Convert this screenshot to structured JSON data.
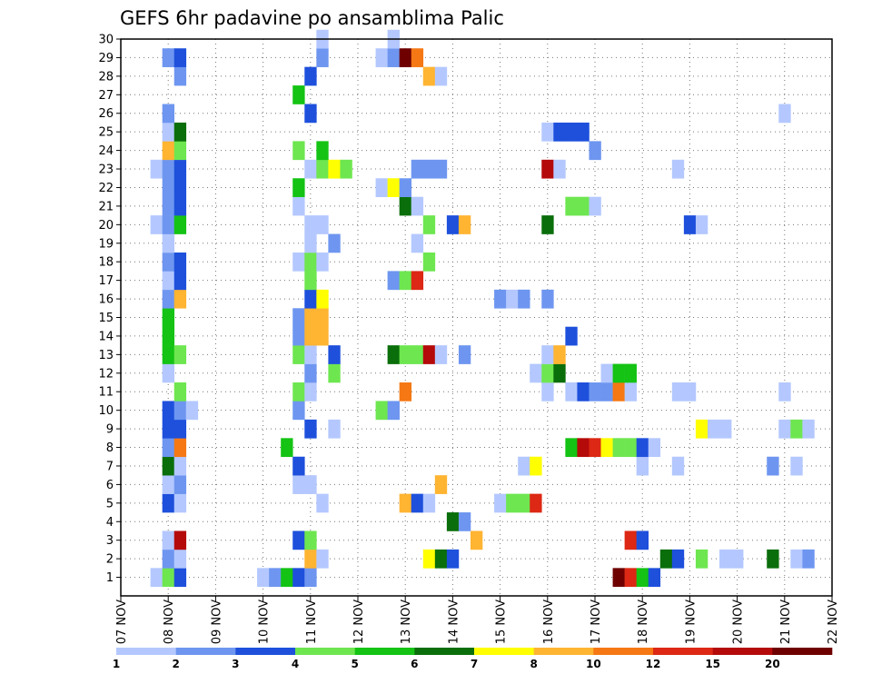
{
  "chart_data": {
    "type": "heatmap",
    "title": "GEFS 6hr padavine po ansamblima Palic",
    "xlabel": "",
    "ylabel": "",
    "x_ticks": [
      "07 NOV",
      "08 NOV",
      "09 NOV",
      "10 NOV",
      "11 NOV",
      "12 NOV",
      "13 NOV",
      "14 NOV",
      "15 NOV",
      "16 NOV",
      "17 NOV",
      "18 NOV",
      "19 NOV",
      "20 NOV",
      "21 NOV",
      "22 NOV"
    ],
    "x_range_days": [
      7,
      22
    ],
    "y_ticks": [
      "1",
      "2",
      "3",
      "4",
      "5",
      "6",
      "7",
      "8",
      "9",
      "10",
      "11",
      "12",
      "13",
      "14",
      "15",
      "16",
      "17",
      "18",
      "19",
      "20",
      "21",
      "22",
      "23",
      "24",
      "25",
      "26",
      "27",
      "28",
      "29",
      "30"
    ],
    "y_range": [
      0,
      30
    ],
    "grid": true,
    "legend": {
      "placement": "bottom",
      "labels": [
        "1",
        "2",
        "3",
        "4",
        "5",
        "6",
        "7",
        "8",
        "10",
        "12",
        "15",
        "20"
      ],
      "colors": [
        "#b4c8ff",
        "#6e96f0",
        "#1e50dc",
        "#6ee650",
        "#14c314",
        "#0a6e0a",
        "#ffff00",
        "#ffb432",
        "#f57814",
        "#dc2814",
        "#b40a0a",
        "#6e0000"
      ]
    },
    "cells": [
      {
        "x": 7.75,
        "y": 1,
        "c": 0
      },
      {
        "x": 8.0,
        "y": 1,
        "c": 3
      },
      {
        "x": 8.25,
        "y": 1,
        "c": 2
      },
      {
        "x": 10.0,
        "y": 1,
        "c": 0
      },
      {
        "x": 10.25,
        "y": 1,
        "c": 1
      },
      {
        "x": 10.5,
        "y": 1,
        "c": 4
      },
      {
        "x": 10.75,
        "y": 1,
        "c": 2
      },
      {
        "x": 11.0,
        "y": 1,
        "c": 1
      },
      {
        "x": 17.5,
        "y": 1,
        "c": 11
      },
      {
        "x": 17.75,
        "y": 1,
        "c": 9
      },
      {
        "x": 18.0,
        "y": 1,
        "c": 4
      },
      {
        "x": 18.25,
        "y": 1,
        "c": 2
      },
      {
        "x": 8.0,
        "y": 2,
        "c": 1
      },
      {
        "x": 8.25,
        "y": 2,
        "c": 0
      },
      {
        "x": 11.0,
        "y": 2,
        "c": 7
      },
      {
        "x": 11.25,
        "y": 2,
        "c": 0
      },
      {
        "x": 13.5,
        "y": 2,
        "c": 6
      },
      {
        "x": 13.75,
        "y": 2,
        "c": 5
      },
      {
        "x": 14.0,
        "y": 2,
        "c": 2
      },
      {
        "x": 18.5,
        "y": 2,
        "c": 5
      },
      {
        "x": 18.75,
        "y": 2,
        "c": 2
      },
      {
        "x": 19.25,
        "y": 2,
        "c": 3
      },
      {
        "x": 19.75,
        "y": 2,
        "c": 0
      },
      {
        "x": 20.0,
        "y": 2,
        "c": 0
      },
      {
        "x": 20.75,
        "y": 2,
        "c": 5
      },
      {
        "x": 21.25,
        "y": 2,
        "c": 0
      },
      {
        "x": 21.5,
        "y": 2,
        "c": 1
      },
      {
        "x": 8.0,
        "y": 3,
        "c": 0
      },
      {
        "x": 8.25,
        "y": 3,
        "c": 10
      },
      {
        "x": 10.75,
        "y": 3,
        "c": 2
      },
      {
        "x": 11.0,
        "y": 3,
        "c": 3
      },
      {
        "x": 14.5,
        "y": 3,
        "c": 7
      },
      {
        "x": 17.75,
        "y": 3,
        "c": 9
      },
      {
        "x": 18.0,
        "y": 3,
        "c": 2
      },
      {
        "x": 14.0,
        "y": 4,
        "c": 5
      },
      {
        "x": 14.25,
        "y": 4,
        "c": 1
      },
      {
        "x": 8.0,
        "y": 5,
        "c": 2
      },
      {
        "x": 8.25,
        "y": 5,
        "c": 0
      },
      {
        "x": 11.25,
        "y": 5,
        "c": 0
      },
      {
        "x": 13.0,
        "y": 5,
        "c": 7
      },
      {
        "x": 13.25,
        "y": 5,
        "c": 2
      },
      {
        "x": 13.5,
        "y": 5,
        "c": 0
      },
      {
        "x": 15.0,
        "y": 5,
        "c": 0
      },
      {
        "x": 15.25,
        "y": 5,
        "c": 3
      },
      {
        "x": 15.5,
        "y": 5,
        "c": 3
      },
      {
        "x": 15.75,
        "y": 5,
        "c": 9
      },
      {
        "x": 8.0,
        "y": 6,
        "c": 0
      },
      {
        "x": 8.25,
        "y": 6,
        "c": 1
      },
      {
        "x": 10.75,
        "y": 6,
        "c": 0
      },
      {
        "x": 11.0,
        "y": 6,
        "c": 0
      },
      {
        "x": 13.75,
        "y": 6,
        "c": 7
      },
      {
        "x": 8.0,
        "y": 7,
        "c": 5
      },
      {
        "x": 8.25,
        "y": 7,
        "c": 0
      },
      {
        "x": 10.75,
        "y": 7,
        "c": 2
      },
      {
        "x": 15.5,
        "y": 7,
        "c": 0
      },
      {
        "x": 15.75,
        "y": 7,
        "c": 6
      },
      {
        "x": 18.0,
        "y": 7,
        "c": 0
      },
      {
        "x": 18.75,
        "y": 7,
        "c": 0
      },
      {
        "x": 20.75,
        "y": 7,
        "c": 1
      },
      {
        "x": 21.25,
        "y": 7,
        "c": 0
      },
      {
        "x": 8.0,
        "y": 8,
        "c": 1
      },
      {
        "x": 8.25,
        "y": 8,
        "c": 8
      },
      {
        "x": 10.5,
        "y": 8,
        "c": 4
      },
      {
        "x": 16.5,
        "y": 8,
        "c": 4
      },
      {
        "x": 16.75,
        "y": 8,
        "c": 10
      },
      {
        "x": 17.0,
        "y": 8,
        "c": 9
      },
      {
        "x": 17.25,
        "y": 8,
        "c": 6
      },
      {
        "x": 17.5,
        "y": 8,
        "c": 3
      },
      {
        "x": 17.75,
        "y": 8,
        "c": 3
      },
      {
        "x": 18.0,
        "y": 8,
        "c": 2
      },
      {
        "x": 18.25,
        "y": 8,
        "c": 0
      },
      {
        "x": 8.0,
        "y": 9,
        "c": 2
      },
      {
        "x": 8.25,
        "y": 9,
        "c": 2
      },
      {
        "x": 11.0,
        "y": 9,
        "c": 2
      },
      {
        "x": 11.5,
        "y": 9,
        "c": 0
      },
      {
        "x": 19.25,
        "y": 9,
        "c": 6
      },
      {
        "x": 19.5,
        "y": 9,
        "c": 0
      },
      {
        "x": 19.75,
        "y": 9,
        "c": 0
      },
      {
        "x": 21.0,
        "y": 9,
        "c": 0
      },
      {
        "x": 21.25,
        "y": 9,
        "c": 3
      },
      {
        "x": 21.5,
        "y": 9,
        "c": 0
      },
      {
        "x": 8.0,
        "y": 10,
        "c": 2
      },
      {
        "x": 8.25,
        "y": 10,
        "c": 1
      },
      {
        "x": 8.5,
        "y": 10,
        "c": 0
      },
      {
        "x": 10.75,
        "y": 10,
        "c": 1
      },
      {
        "x": 12.5,
        "y": 10,
        "c": 3
      },
      {
        "x": 12.75,
        "y": 10,
        "c": 1
      },
      {
        "x": 8.25,
        "y": 11,
        "c": 3
      },
      {
        "x": 10.75,
        "y": 11,
        "c": 3
      },
      {
        "x": 11.0,
        "y": 11,
        "c": 0
      },
      {
        "x": 13.0,
        "y": 11,
        "c": 8
      },
      {
        "x": 16.0,
        "y": 11,
        "c": 0
      },
      {
        "x": 16.5,
        "y": 11,
        "c": 0
      },
      {
        "x": 16.75,
        "y": 11,
        "c": 2
      },
      {
        "x": 17.0,
        "y": 11,
        "c": 1
      },
      {
        "x": 17.25,
        "y": 11,
        "c": 1
      },
      {
        "x": 17.5,
        "y": 11,
        "c": 8
      },
      {
        "x": 17.75,
        "y": 11,
        "c": 0
      },
      {
        "x": 18.75,
        "y": 11,
        "c": 0
      },
      {
        "x": 19.0,
        "y": 11,
        "c": 0
      },
      {
        "x": 21.0,
        "y": 11,
        "c": 0
      },
      {
        "x": 8.0,
        "y": 12,
        "c": 0
      },
      {
        "x": 11.0,
        "y": 12,
        "c": 1
      },
      {
        "x": 11.5,
        "y": 12,
        "c": 3
      },
      {
        "x": 15.75,
        "y": 12,
        "c": 0
      },
      {
        "x": 16.0,
        "y": 12,
        "c": 3
      },
      {
        "x": 16.25,
        "y": 12,
        "c": 5
      },
      {
        "x": 17.25,
        "y": 12,
        "c": 0
      },
      {
        "x": 17.5,
        "y": 12,
        "c": 4
      },
      {
        "x": 17.75,
        "y": 12,
        "c": 4
      },
      {
        "x": 8.0,
        "y": 13,
        "c": 4
      },
      {
        "x": 8.25,
        "y": 13,
        "c": 3
      },
      {
        "x": 10.75,
        "y": 13,
        "c": 3
      },
      {
        "x": 11.0,
        "y": 13,
        "c": 0
      },
      {
        "x": 11.5,
        "y": 13,
        "c": 2
      },
      {
        "x": 12.75,
        "y": 13,
        "c": 5
      },
      {
        "x": 13.0,
        "y": 13,
        "c": 3
      },
      {
        "x": 13.25,
        "y": 13,
        "c": 3
      },
      {
        "x": 13.5,
        "y": 13,
        "c": 10
      },
      {
        "x": 13.75,
        "y": 13,
        "c": 0
      },
      {
        "x": 14.25,
        "y": 13,
        "c": 1
      },
      {
        "x": 16.0,
        "y": 13,
        "c": 0
      },
      {
        "x": 16.25,
        "y": 13,
        "c": 7
      },
      {
        "x": 8.0,
        "y": 14,
        "c": 4
      },
      {
        "x": 10.75,
        "y": 14,
        "c": 1
      },
      {
        "x": 11.0,
        "y": 14,
        "c": 7
      },
      {
        "x": 11.25,
        "y": 14,
        "c": 7
      },
      {
        "x": 16.5,
        "y": 14,
        "c": 2
      },
      {
        "x": 8.0,
        "y": 15,
        "c": 4
      },
      {
        "x": 10.75,
        "y": 15,
        "c": 1
      },
      {
        "x": 11.0,
        "y": 15,
        "c": 7
      },
      {
        "x": 11.25,
        "y": 15,
        "c": 7
      },
      {
        "x": 8.0,
        "y": 16,
        "c": 1
      },
      {
        "x": 8.25,
        "y": 16,
        "c": 7
      },
      {
        "x": 11.0,
        "y": 16,
        "c": 2
      },
      {
        "x": 11.25,
        "y": 16,
        "c": 6
      },
      {
        "x": 15.0,
        "y": 16,
        "c": 1
      },
      {
        "x": 15.25,
        "y": 16,
        "c": 0
      },
      {
        "x": 15.5,
        "y": 16,
        "c": 1
      },
      {
        "x": 16.0,
        "y": 16,
        "c": 1
      },
      {
        "x": 8.0,
        "y": 17,
        "c": 0
      },
      {
        "x": 8.25,
        "y": 17,
        "c": 2
      },
      {
        "x": 11.0,
        "y": 17,
        "c": 3
      },
      {
        "x": 12.75,
        "y": 17,
        "c": 1
      },
      {
        "x": 13.0,
        "y": 17,
        "c": 3
      },
      {
        "x": 13.25,
        "y": 17,
        "c": 9
      },
      {
        "x": 8.0,
        "y": 18,
        "c": 1
      },
      {
        "x": 8.25,
        "y": 18,
        "c": 2
      },
      {
        "x": 10.75,
        "y": 18,
        "c": 0
      },
      {
        "x": 11.0,
        "y": 18,
        "c": 3
      },
      {
        "x": 11.25,
        "y": 18,
        "c": 0
      },
      {
        "x": 13.5,
        "y": 18,
        "c": 3
      },
      {
        "x": 8.0,
        "y": 19,
        "c": 0
      },
      {
        "x": 11.0,
        "y": 19,
        "c": 0
      },
      {
        "x": 11.5,
        "y": 19,
        "c": 1
      },
      {
        "x": 13.25,
        "y": 19,
        "c": 0
      },
      {
        "x": 7.75,
        "y": 20,
        "c": 0
      },
      {
        "x": 8.0,
        "y": 20,
        "c": 1
      },
      {
        "x": 8.25,
        "y": 20,
        "c": 4
      },
      {
        "x": 11.0,
        "y": 20,
        "c": 0
      },
      {
        "x": 11.25,
        "y": 20,
        "c": 0
      },
      {
        "x": 13.5,
        "y": 20,
        "c": 3
      },
      {
        "x": 14.0,
        "y": 20,
        "c": 2
      },
      {
        "x": 14.25,
        "y": 20,
        "c": 7
      },
      {
        "x": 16.0,
        "y": 20,
        "c": 5
      },
      {
        "x": 19.0,
        "y": 20,
        "c": 2
      },
      {
        "x": 19.25,
        "y": 20,
        "c": 0
      },
      {
        "x": 8.0,
        "y": 21,
        "c": 1
      },
      {
        "x": 8.25,
        "y": 21,
        "c": 2
      },
      {
        "x": 10.75,
        "y": 21,
        "c": 0
      },
      {
        "x": 13.0,
        "y": 21,
        "c": 5
      },
      {
        "x": 13.25,
        "y": 21,
        "c": 0
      },
      {
        "x": 16.5,
        "y": 21,
        "c": 3
      },
      {
        "x": 16.75,
        "y": 21,
        "c": 3
      },
      {
        "x": 17.0,
        "y": 21,
        "c": 0
      },
      {
        "x": 8.0,
        "y": 22,
        "c": 1
      },
      {
        "x": 8.25,
        "y": 22,
        "c": 2
      },
      {
        "x": 10.75,
        "y": 22,
        "c": 4
      },
      {
        "x": 12.5,
        "y": 22,
        "c": 0
      },
      {
        "x": 12.75,
        "y": 22,
        "c": 6
      },
      {
        "x": 13.0,
        "y": 22,
        "c": 1
      },
      {
        "x": 7.75,
        "y": 23,
        "c": 0
      },
      {
        "x": 8.0,
        "y": 23,
        "c": 1
      },
      {
        "x": 8.25,
        "y": 23,
        "c": 2
      },
      {
        "x": 11.0,
        "y": 23,
        "c": 0
      },
      {
        "x": 11.25,
        "y": 23,
        "c": 3
      },
      {
        "x": 11.5,
        "y": 23,
        "c": 6
      },
      {
        "x": 11.75,
        "y": 23,
        "c": 3
      },
      {
        "x": 13.25,
        "y": 23,
        "c": 1
      },
      {
        "x": 13.5,
        "y": 23,
        "c": 1
      },
      {
        "x": 13.75,
        "y": 23,
        "c": 1
      },
      {
        "x": 16.0,
        "y": 23,
        "c": 10
      },
      {
        "x": 16.25,
        "y": 23,
        "c": 0
      },
      {
        "x": 18.75,
        "y": 23,
        "c": 0
      },
      {
        "x": 8.0,
        "y": 24,
        "c": 7
      },
      {
        "x": 8.25,
        "y": 24,
        "c": 3
      },
      {
        "x": 10.75,
        "y": 24,
        "c": 3
      },
      {
        "x": 11.25,
        "y": 24,
        "c": 4
      },
      {
        "x": 8.0,
        "y": 25,
        "c": 0
      },
      {
        "x": 8.25,
        "y": 25,
        "c": 5
      },
      {
        "x": 16.0,
        "y": 25,
        "c": 0
      },
      {
        "x": 16.25,
        "y": 25,
        "c": 2
      },
      {
        "x": 16.5,
        "y": 25,
        "c": 2
      },
      {
        "x": 16.75,
        "y": 25,
        "c": 2
      },
      {
        "x": 17.0,
        "y": 24,
        "c": 1
      },
      {
        "x": 8.0,
        "y": 26,
        "c": 1
      },
      {
        "x": 11.0,
        "y": 26,
        "c": 2
      },
      {
        "x": 21.0,
        "y": 26,
        "c": 0
      },
      {
        "x": 10.75,
        "y": 27,
        "c": 4
      },
      {
        "x": 8.25,
        "y": 28,
        "c": 1
      },
      {
        "x": 11.0,
        "y": 28,
        "c": 2
      },
      {
        "x": 13.5,
        "y": 28,
        "c": 7
      },
      {
        "x": 13.75,
        "y": 28,
        "c": 0
      },
      {
        "x": 8.0,
        "y": 29,
        "c": 1
      },
      {
        "x": 8.25,
        "y": 29,
        "c": 2
      },
      {
        "x": 11.25,
        "y": 29,
        "c": 1
      },
      {
        "x": 12.5,
        "y": 29,
        "c": 0
      },
      {
        "x": 12.75,
        "y": 29,
        "c": 1
      },
      {
        "x": 13.0,
        "y": 29,
        "c": 11
      },
      {
        "x": 13.25,
        "y": 29,
        "c": 8
      },
      {
        "x": 11.25,
        "y": 30,
        "c": 0
      },
      {
        "x": 12.75,
        "y": 30,
        "c": 0
      }
    ]
  }
}
